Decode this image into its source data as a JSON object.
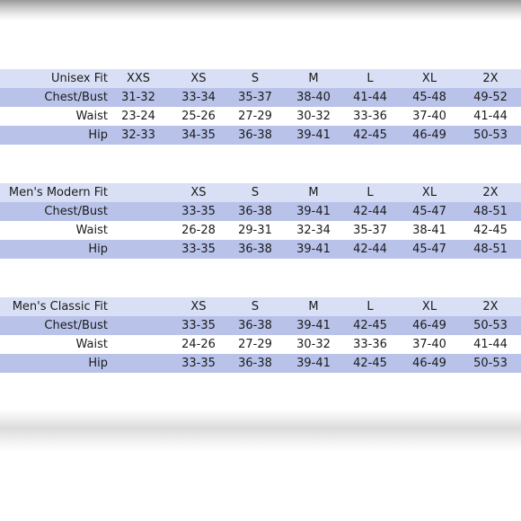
{
  "tables": [
    {
      "header": [
        "Unisex Fit",
        "XXS",
        "XS",
        "S",
        "M",
        "L",
        "XL",
        "2X"
      ],
      "rows": [
        [
          "Chest/Bust",
          "31-32",
          "33-34",
          "35-37",
          "38-40",
          "41-44",
          "45-48",
          "49-52"
        ],
        [
          "Waist",
          "23-24",
          "25-26",
          "27-29",
          "30-32",
          "33-36",
          "37-40",
          "41-44"
        ],
        [
          "Hip",
          "32-33",
          "34-35",
          "36-38",
          "39-41",
          "42-45",
          "46-49",
          "50-53"
        ]
      ]
    },
    {
      "header": [
        "Men's Modern Fit",
        "",
        "XS",
        "S",
        "M",
        "L",
        "XL",
        "2X"
      ],
      "rows": [
        [
          "Chest/Bust",
          "",
          "33-35",
          "36-38",
          "39-41",
          "42-44",
          "45-47",
          "48-51"
        ],
        [
          "Waist",
          "",
          "26-28",
          "29-31",
          "32-34",
          "35-37",
          "38-41",
          "42-45"
        ],
        [
          "Hip",
          "",
          "33-35",
          "36-38",
          "39-41",
          "42-44",
          "45-47",
          "48-51"
        ]
      ]
    },
    {
      "header": [
        "Men's Classic Fit",
        "",
        "XS",
        "S",
        "M",
        "L",
        "XL",
        "2X"
      ],
      "rows": [
        [
          "Chest/Bust",
          "",
          "33-35",
          "36-38",
          "39-41",
          "42-45",
          "46-49",
          "50-53"
        ],
        [
          "Waist",
          "",
          "24-26",
          "27-29",
          "30-32",
          "33-36",
          "37-40",
          "41-44"
        ],
        [
          "Hip",
          "",
          "33-35",
          "36-38",
          "39-41",
          "42-45",
          "46-49",
          "50-53"
        ]
      ]
    }
  ],
  "colors": {
    "row_light": "#d9dff4",
    "row_dark": "#b9c3ea",
    "text": "#1b1b1b"
  }
}
